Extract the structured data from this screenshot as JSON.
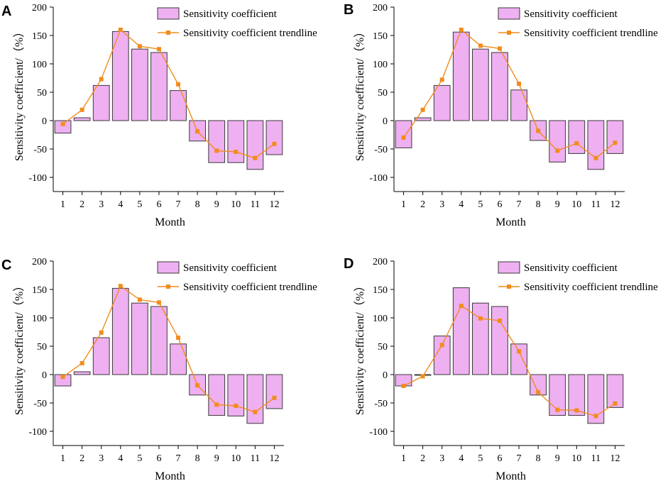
{
  "colors": {
    "bar_fill": "#eeb0f0",
    "bar_stroke": "#3a3a3a",
    "trend": "#f28c1c",
    "axis": "#000000"
  },
  "chart_data": [
    {
      "panel": "A",
      "type": "bar",
      "title": "",
      "xlabel": "Month",
      "ylabel": "Sensitivity coefficient/（%）",
      "categories": [
        "1",
        "2",
        "3",
        "4",
        "5",
        "6",
        "7",
        "8",
        "9",
        "10",
        "11",
        "12"
      ],
      "ylim": [
        -125,
        200
      ],
      "yticks": [
        200,
        150,
        100,
        50,
        0,
        -50,
        -100
      ],
      "legend": [
        "Sensitivity coefficient",
        "Sensitivity coefficient trendline"
      ],
      "series": [
        {
          "name": "Sensitivity coefficient",
          "kind": "bar",
          "values": [
            -22,
            5,
            62,
            157,
            126,
            120,
            53,
            -36,
            -74,
            -74,
            -86,
            -60
          ]
        },
        {
          "name": "Sensitivity coefficient trendline",
          "kind": "line",
          "values": [
            -6,
            19,
            73,
            160,
            131,
            126,
            64,
            -19,
            -53,
            -55,
            -66,
            -41
          ]
        }
      ]
    },
    {
      "panel": "B",
      "type": "bar",
      "title": "",
      "xlabel": "Month",
      "ylabel": "Sensitivity coefficient/（%）",
      "categories": [
        "1",
        "2",
        "3",
        "4",
        "5",
        "6",
        "7",
        "8",
        "9",
        "10",
        "11",
        "12"
      ],
      "ylim": [
        -125,
        200
      ],
      "yticks": [
        200,
        150,
        100,
        50,
        0,
        -50,
        -100
      ],
      "legend": [
        "Sensitivity coefficient",
        "Sensitivity coefficient trendline"
      ],
      "series": [
        {
          "name": "Sensitivity coefficient",
          "kind": "bar",
          "values": [
            -48,
            5,
            62,
            156,
            126,
            120,
            54,
            -35,
            -73,
            -58,
            -86,
            -58
          ]
        },
        {
          "name": "Sensitivity coefficient trendline",
          "kind": "line",
          "values": [
            -30,
            19,
            72,
            160,
            132,
            127,
            65,
            -18,
            -53,
            -40,
            -66,
            -39
          ]
        }
      ]
    },
    {
      "panel": "C",
      "type": "bar",
      "title": "",
      "xlabel": "Month",
      "ylabel": "Sensitivity coefficient/（%）",
      "categories": [
        "1",
        "2",
        "3",
        "4",
        "5",
        "6",
        "7",
        "8",
        "9",
        "10",
        "11",
        "12"
      ],
      "ylim": [
        -125,
        200
      ],
      "yticks": [
        200,
        150,
        100,
        50,
        0,
        -50,
        -100
      ],
      "legend": [
        "Sensitivity coefficient",
        "Sensitivity coefficient trendline"
      ],
      "series": [
        {
          "name": "Sensitivity coefficient",
          "kind": "bar",
          "values": [
            -20,
            5,
            65,
            152,
            126,
            120,
            54,
            -36,
            -72,
            -73,
            -86,
            -60
          ]
        },
        {
          "name": "Sensitivity coefficient trendline",
          "kind": "line",
          "values": [
            -4,
            20,
            74,
            156,
            132,
            127,
            65,
            -19,
            -53,
            -55,
            -66,
            -41
          ]
        }
      ]
    },
    {
      "panel": "D",
      "type": "bar",
      "title": "",
      "xlabel": "Month",
      "ylabel": "Sensitivity coefficient/（%）",
      "categories": [
        "1",
        "2",
        "3",
        "4",
        "5",
        "6",
        "7",
        "8",
        "9",
        "10",
        "11",
        "12"
      ],
      "ylim": [
        -125,
        200
      ],
      "yticks": [
        200,
        150,
        100,
        50,
        0,
        -50,
        -100
      ],
      "legend": [
        "Sensitivity coefficient",
        "Sensitivity coefficient trendline"
      ],
      "series": [
        {
          "name": "Sensitivity coefficient",
          "kind": "bar",
          "values": [
            -20,
            0,
            68,
            153,
            126,
            120,
            54,
            -36,
            -72,
            -72,
            -86,
            -58
          ]
        },
        {
          "name": "Sensitivity coefficient trendline",
          "kind": "line",
          "values": [
            -20,
            -3,
            52,
            121,
            99,
            95,
            41,
            -31,
            -62,
            -63,
            -73,
            -51
          ]
        }
      ]
    }
  ]
}
